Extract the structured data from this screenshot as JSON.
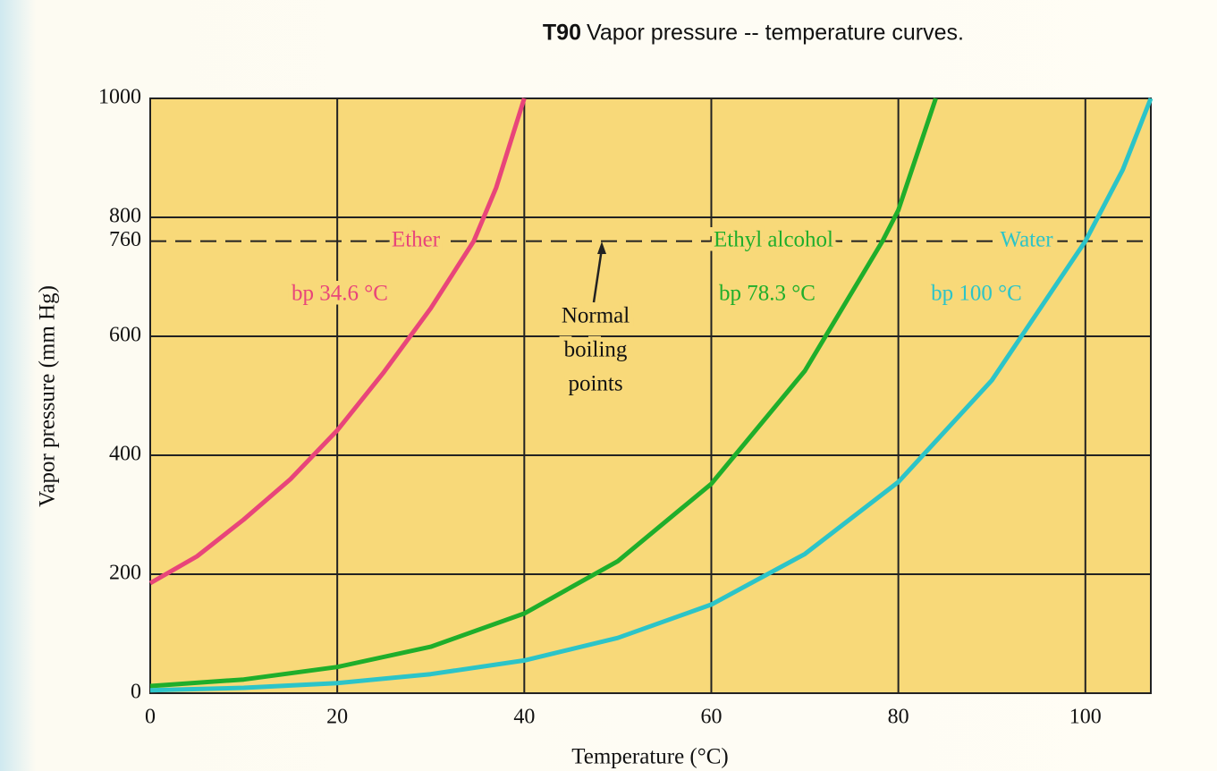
{
  "chart_data": {
    "type": "line",
    "figure_label": "T90",
    "title": "Vapor pressure -- temperature curves.",
    "xlabel": "Temperature (°C)",
    "ylabel": "Vapor pressure (mm Hg)",
    "xlim": [
      0,
      107
    ],
    "ylim": [
      0,
      1000
    ],
    "xticks": [
      0,
      20,
      40,
      60,
      80,
      100
    ],
    "yticks": [
      0,
      200,
      400,
      600,
      800,
      1000
    ],
    "reference_line": 760,
    "grid": true,
    "background": "#f8d979",
    "series": [
      {
        "name": "Ether",
        "color": "#e8457a",
        "x": [
          0,
          5,
          10,
          15,
          20,
          25,
          30,
          34.6,
          37,
          40
        ],
        "values": [
          185,
          230,
          292,
          360,
          442,
          540,
          647,
          760,
          850,
          1000
        ],
        "boiling_label": "bp 34.6 °C"
      },
      {
        "name": "Ethyl alcohol",
        "color": "#1fae2b",
        "x": [
          0,
          10,
          20,
          30,
          40,
          50,
          60,
          70,
          78.3,
          80,
          84
        ],
        "values": [
          12,
          23,
          44,
          78,
          134,
          222,
          352,
          542,
          760,
          812,
          1000
        ],
        "boiling_label": "bp 78.3 °C"
      },
      {
        "name": "Water",
        "color": "#2cc4c8",
        "x": [
          0,
          10,
          20,
          30,
          40,
          50,
          60,
          70,
          80,
          90,
          100,
          104,
          107
        ],
        "values": [
          5,
          9,
          17,
          32,
          55,
          93,
          149,
          234,
          355,
          526,
          760,
          880,
          1000
        ],
        "boiling_label": "bp 100 °C"
      }
    ],
    "annotation": [
      "Normal",
      "boiling",
      "points"
    ]
  }
}
